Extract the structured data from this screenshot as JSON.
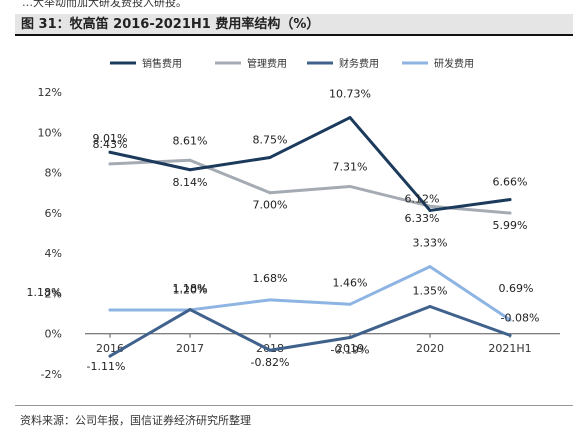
{
  "page": {
    "top_fragment": "…大举动而加大研发费投入研投。",
    "figure_title": "图 31：牧高笛 2016-2021H1 费用率结构（%）",
    "source": "资料来源：公司年报，国信证券经济研究所整理"
  },
  "chart_data": {
    "type": "line",
    "title": "",
    "xlabel": "",
    "ylabel": "",
    "x": [
      "2016",
      "2017",
      "2018",
      "2019",
      "2020",
      "2021H1"
    ],
    "ylim": [
      -2,
      12
    ],
    "yticks": [
      -2,
      0,
      2,
      4,
      6,
      8,
      10,
      12
    ],
    "ytick_labels": [
      "-2%",
      "0%",
      "2%",
      "4%",
      "6%",
      "8%",
      "10%",
      "12%"
    ],
    "grid": false,
    "legend_position": "top",
    "series": [
      {
        "name": "销售费用",
        "color": "#1b3a5c",
        "values": [
          9.01,
          8.14,
          8.75,
          10.73,
          6.12,
          6.66
        ],
        "labels": [
          "9.01%",
          "8.14%",
          "8.75%",
          "10.73%",
          "6.12%",
          "6.66%"
        ]
      },
      {
        "name": "管理费用",
        "color": "#a5abb3",
        "values": [
          8.43,
          8.61,
          7.0,
          7.31,
          6.33,
          5.99
        ],
        "labels": [
          "8.43%",
          "8.61%",
          "7.00%",
          "7.31%",
          "6.33%",
          "5.99%"
        ]
      },
      {
        "name": "财务费用",
        "color": "#3f618c",
        "values": [
          -1.11,
          1.2,
          -0.82,
          -0.19,
          1.35,
          -0.08
        ],
        "labels": [
          "-1.11%",
          "1.20%",
          "-0.82%",
          "-0.19%",
          "1.35%",
          "-0.08%"
        ]
      },
      {
        "name": "研发费用",
        "color": "#8eb4e3",
        "values": [
          1.18,
          1.18,
          1.68,
          1.46,
          3.33,
          0.69
        ],
        "labels": [
          "1.18%",
          "1.18%",
          "1.68%",
          "1.46%",
          "3.33%",
          "0.69%"
        ]
      }
    ]
  }
}
